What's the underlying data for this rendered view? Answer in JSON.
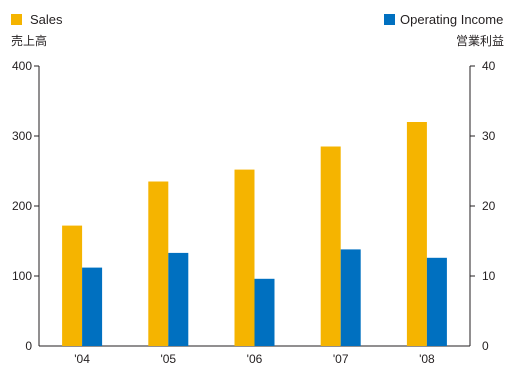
{
  "chart_data": {
    "type": "bar",
    "categories": [
      "'04",
      "'05",
      "'06",
      "'07",
      "'08"
    ],
    "series": [
      {
        "name": "Sales",
        "name_sub": "売上高",
        "axis": "left",
        "color": "#f5b400",
        "values": [
          172,
          235,
          252,
          285,
          320
        ]
      },
      {
        "name": "Operating Income",
        "name_sub": "営業利益",
        "axis": "right",
        "color": "#0070c0",
        "values": [
          11.2,
          13.3,
          9.6,
          13.8,
          12.6
        ]
      }
    ],
    "y_left": {
      "ylim": [
        0,
        400
      ],
      "ticks": [
        "0",
        "100",
        "200",
        "300",
        "400"
      ]
    },
    "y_right": {
      "ylim": [
        0,
        40
      ],
      "ticks": [
        "0",
        "10",
        "20",
        "30",
        "40"
      ]
    },
    "legend": "top"
  }
}
